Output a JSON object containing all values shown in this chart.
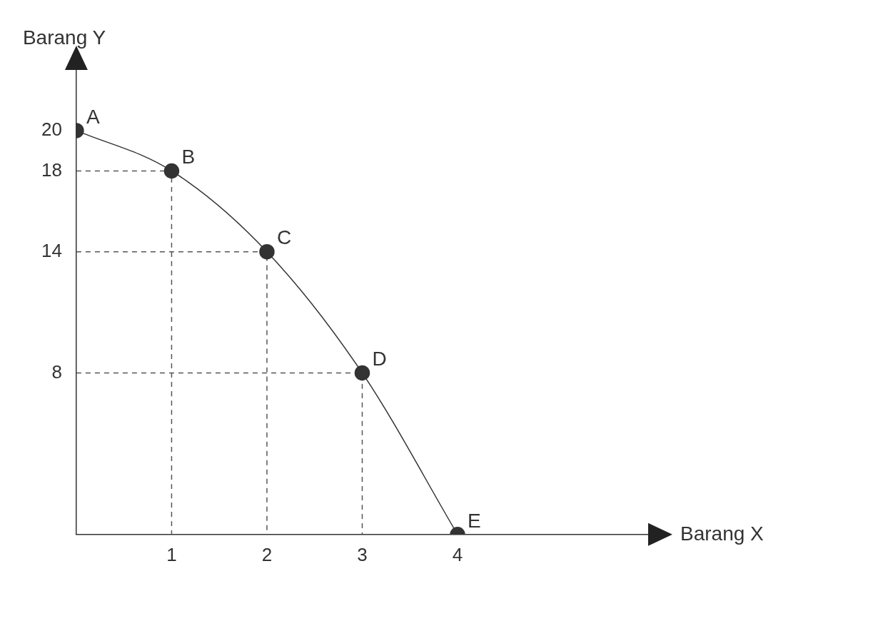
{
  "chart_data": {
    "type": "line",
    "xlabel": "Barang X",
    "ylabel": "Barang Y",
    "x": [
      0,
      1,
      2,
      3,
      4
    ],
    "xlim": [
      0,
      6
    ],
    "ylim": [
      0,
      23
    ],
    "xticks": [
      1,
      2,
      3,
      4
    ],
    "yticks": [
      8,
      14,
      18,
      20
    ],
    "grid": false,
    "legend": false,
    "marker": "circle",
    "series": [
      {
        "type": "line",
        "color": "#333333",
        "values": [
          20,
          18,
          14,
          8,
          0
        ],
        "line_style": "solid"
      },
      {
        "type": "line",
        "color": "#555555",
        "x": [
          0,
          1,
          1
        ],
        "values": [
          18,
          18,
          0
        ],
        "marker": "none",
        "line_style": "dashed"
      },
      {
        "type": "line",
        "color": "#555555",
        "x": [
          0,
          2,
          2
        ],
        "values": [
          14,
          14,
          0
        ],
        "marker": "none",
        "line_style": "dashed"
      },
      {
        "type": "line",
        "color": "#555555",
        "x": [
          0,
          3,
          3
        ],
        "values": [
          8,
          8,
          0
        ],
        "marker": "none",
        "line_style": "dashed"
      }
    ],
    "annotations": [
      {
        "text": "A",
        "x": 0,
        "y": 20
      },
      {
        "text": "B",
        "x": 1,
        "y": 18
      },
      {
        "text": "C",
        "x": 2,
        "y": 14
      },
      {
        "text": "D",
        "x": 3,
        "y": 8
      },
      {
        "text": "E",
        "x": 4,
        "y": 0
      }
    ]
  }
}
